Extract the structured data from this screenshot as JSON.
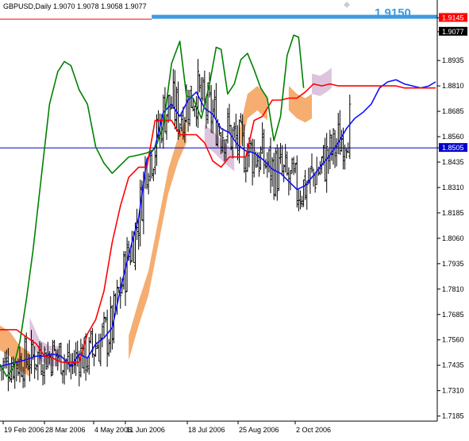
{
  "header": {
    "symbol_info": "GBPUSD,Daily  1.9070 1.9078 1.9058 1.9077"
  },
  "annotation": {
    "target_level_label": "1.9150",
    "target_level_value": 1.915
  },
  "colors": {
    "background": "#ffffff",
    "price_bars": "#000000",
    "tenkan": "#1010ff",
    "kijun": "#ff0000",
    "chikou": "#008000",
    "cloud_bullish": "#f4a460",
    "cloud_bearish": "#d8bfd8",
    "target_line": "#3d9be3",
    "horizontal_line": "#0000cd",
    "current_price_marker": "#000000",
    "red_price_marker": "#ff0000"
  },
  "chart_data": {
    "type": "line",
    "title": "GBPUSD,Daily",
    "indicator_style": "ichimoku",
    "x_tick_labels": [
      "19 Feb 2006",
      "28 Mar 2006",
      "4 May 2006",
      "11 Jun 2006",
      "18 Jul 2006",
      "25 Aug 2006",
      "2 Oct 2006"
    ],
    "y_tick_labels": [
      "1.9145",
      "1.9077",
      "1.8935",
      "1.8810",
      "1.8685",
      "1.8560",
      "1.8505",
      "1.8435",
      "1.8310",
      "1.8185",
      "1.8060",
      "1.7935",
      "1.7810",
      "1.7685",
      "1.7560",
      "1.7435",
      "1.7310",
      "1.7185"
    ],
    "ylim": [
      1.716,
      1.9225
    ],
    "grid": false,
    "price_markers": [
      {
        "label": "1.9145",
        "value": 1.9145,
        "kind": "red"
      },
      {
        "label": "1.9077",
        "value": 1.9077,
        "kind": "current"
      },
      {
        "label": "1.8505",
        "value": 1.8505,
        "kind": "horizontal"
      }
    ],
    "horizontal_lines": [
      {
        "value": 1.915,
        "style": "target"
      },
      {
        "value": 1.9145,
        "style": "red-thin"
      },
      {
        "value": 1.8505,
        "style": "blue-thin"
      }
    ],
    "series": [
      {
        "values": [
          [
            0,
            1.743
          ],
          [
            5,
            1.744
          ],
          [
            10,
            1.745
          ],
          [
            15,
            1.746
          ],
          [
            22,
            1.748
          ],
          [
            27,
            1.748
          ],
          [
            32,
            1.749
          ],
          [
            37,
            1.748
          ],
          [
            43,
            1.743
          ],
          [
            48,
            1.749
          ],
          [
            53,
            1.747
          ],
          [
            58,
            1.754
          ],
          [
            63,
            1.757
          ],
          [
            68,
            1.762
          ],
          [
            73,
            1.781
          ],
          [
            78,
            1.798
          ],
          [
            84,
            1.816
          ],
          [
            89,
            1.845
          ],
          [
            94,
            1.851
          ],
          [
            99,
            1.868
          ],
          [
            104,
            1.872
          ],
          [
            109,
            1.866
          ],
          [
            114,
            1.874
          ],
          [
            119,
            1.878
          ],
          [
            124,
            1.87
          ],
          [
            129,
            1.867
          ],
          [
            134,
            1.86
          ],
          [
            139,
            1.858
          ],
          [
            144,
            1.852
          ],
          [
            149,
            1.849
          ],
          [
            154,
            1.848
          ],
          [
            159,
            1.845
          ],
          [
            165,
            1.84
          ],
          [
            170,
            1.838
          ],
          [
            175,
            1.834
          ],
          [
            180,
            1.83
          ],
          [
            185,
            1.832
          ],
          [
            190,
            1.837
          ],
          [
            195,
            1.842
          ],
          [
            200,
            1.847
          ],
          [
            205,
            1.853
          ],
          [
            210,
            1.86
          ],
          [
            215,
            1.865
          ],
          [
            220,
            1.868
          ],
          [
            225,
            1.872
          ],
          [
            230,
            1.88
          ],
          [
            235,
            1.883
          ],
          [
            240,
            1.884
          ],
          [
            245,
            1.882
          ],
          [
            250,
            1.881
          ],
          [
            255,
            1.88
          ],
          [
            260,
            1.881
          ],
          [
            264,
            1.883
          ]
        ]
      },
      {
        "values": [
          [
            0,
            1.761
          ],
          [
            5,
            1.761
          ],
          [
            10,
            1.761
          ],
          [
            15,
            1.758
          ],
          [
            22,
            1.754
          ],
          [
            27,
            1.748
          ],
          [
            32,
            1.747
          ],
          [
            37,
            1.745
          ],
          [
            43,
            1.745
          ],
          [
            48,
            1.745
          ],
          [
            53,
            1.759
          ],
          [
            58,
            1.766
          ],
          [
            63,
            1.78
          ],
          [
            68,
            1.804
          ],
          [
            73,
            1.822
          ],
          [
            78,
            1.836
          ],
          [
            84,
            1.841
          ],
          [
            89,
            1.841
          ],
          [
            94,
            1.864
          ],
          [
            99,
            1.864
          ],
          [
            104,
            1.864
          ],
          [
            109,
            1.857
          ],
          [
            114,
            1.857
          ],
          [
            119,
            1.857
          ],
          [
            124,
            1.853
          ],
          [
            129,
            1.844
          ],
          [
            134,
            1.841
          ],
          [
            139,
            1.846
          ],
          [
            144,
            1.846
          ],
          [
            149,
            1.846
          ],
          [
            154,
            1.864
          ],
          [
            159,
            1.866
          ],
          [
            165,
            1.874
          ],
          [
            170,
            1.874
          ],
          [
            175,
            1.875
          ],
          [
            180,
            1.875
          ],
          [
            185,
            1.878
          ],
          [
            190,
            1.882
          ],
          [
            195,
            1.881
          ],
          [
            200,
            1.882
          ],
          [
            205,
            1.881
          ],
          [
            210,
            1.881
          ],
          [
            215,
            1.881
          ],
          [
            220,
            1.881
          ],
          [
            225,
            1.881
          ],
          [
            230,
            1.881
          ],
          [
            235,
            1.881
          ],
          [
            240,
            1.881
          ],
          [
            245,
            1.88
          ],
          [
            250,
            1.88
          ],
          [
            255,
            1.88
          ],
          [
            260,
            1.88
          ],
          [
            264,
            1.88
          ]
        ]
      },
      {
        "values": [
          [
            0,
            1.744
          ],
          [
            4,
            1.738
          ],
          [
            8,
            1.742
          ],
          [
            12,
            1.755
          ],
          [
            16,
            1.776
          ],
          [
            20,
            1.8
          ],
          [
            25,
            1.836
          ],
          [
            30,
            1.872
          ],
          [
            35,
            1.888
          ],
          [
            39,
            1.893
          ],
          [
            43,
            1.891
          ],
          [
            48,
            1.879
          ],
          [
            53,
            1.872
          ],
          [
            58,
            1.851
          ],
          [
            63,
            1.843
          ],
          [
            68,
            1.838
          ],
          [
            73,
            1.842
          ],
          [
            78,
            1.846
          ],
          [
            84,
            1.847
          ],
          [
            89,
            1.848
          ],
          [
            94,
            1.85
          ],
          [
            99,
            1.861
          ],
          [
            104,
            1.892
          ],
          [
            109,
            1.903
          ],
          [
            113,
            1.876
          ],
          [
            117,
            1.875
          ],
          [
            122,
            1.865
          ],
          [
            127,
            1.882
          ],
          [
            131,
            1.9
          ],
          [
            134,
            1.899
          ],
          [
            138,
            1.877
          ],
          [
            142,
            1.882
          ],
          [
            146,
            1.894
          ],
          [
            150,
            1.897
          ],
          [
            154,
            1.889
          ],
          [
            158,
            1.88
          ],
          [
            162,
            1.875
          ],
          [
            166,
            1.854
          ],
          [
            170,
            1.866
          ],
          [
            174,
            1.896
          ],
          [
            178,
            1.906
          ],
          [
            181,
            1.905
          ],
          [
            184,
            1.88
          ]
        ]
      }
    ],
    "cloud_regions": [
      {
        "kind": "bullish",
        "points": [
          [
            0,
            1.763
          ],
          [
            6,
            1.76
          ],
          [
            12,
            1.753
          ],
          [
            18,
            1.75
          ]
        ]
      },
      {
        "kind": "bearish",
        "points": [
          [
            18,
            1.757
          ],
          [
            24,
            1.746
          ],
          [
            30,
            1.743
          ],
          [
            36,
            1.743
          ]
        ]
      },
      {
        "kind": "bullish",
        "points": [
          [
            78,
            1.758
          ],
          [
            84,
            1.775
          ],
          [
            90,
            1.79
          ],
          [
            96,
            1.815
          ],
          [
            102,
            1.84
          ],
          [
            108,
            1.856
          ],
          [
            113,
            1.865
          ]
        ]
      },
      {
        "kind": "bearish",
        "points": [
          [
            124,
            1.852
          ],
          [
            130,
            1.848
          ],
          [
            136,
            1.843
          ],
          [
            142,
            1.839
          ]
        ]
      },
      {
        "kind": "bullish",
        "points": [
          [
            145,
            1.859
          ],
          [
            150,
            1.877
          ],
          [
            156,
            1.881
          ],
          [
            162,
            1.876
          ]
        ]
      },
      {
        "kind": "bullish",
        "points": [
          [
            175,
            1.881
          ],
          [
            180,
            1.877
          ],
          [
            185,
            1.875
          ],
          [
            189,
            1.877
          ]
        ]
      },
      {
        "kind": "bearish",
        "points": [
          [
            189,
            1.877
          ],
          [
            194,
            1.876
          ],
          [
            198,
            1.878
          ],
          [
            201,
            1.88
          ]
        ]
      }
    ]
  }
}
